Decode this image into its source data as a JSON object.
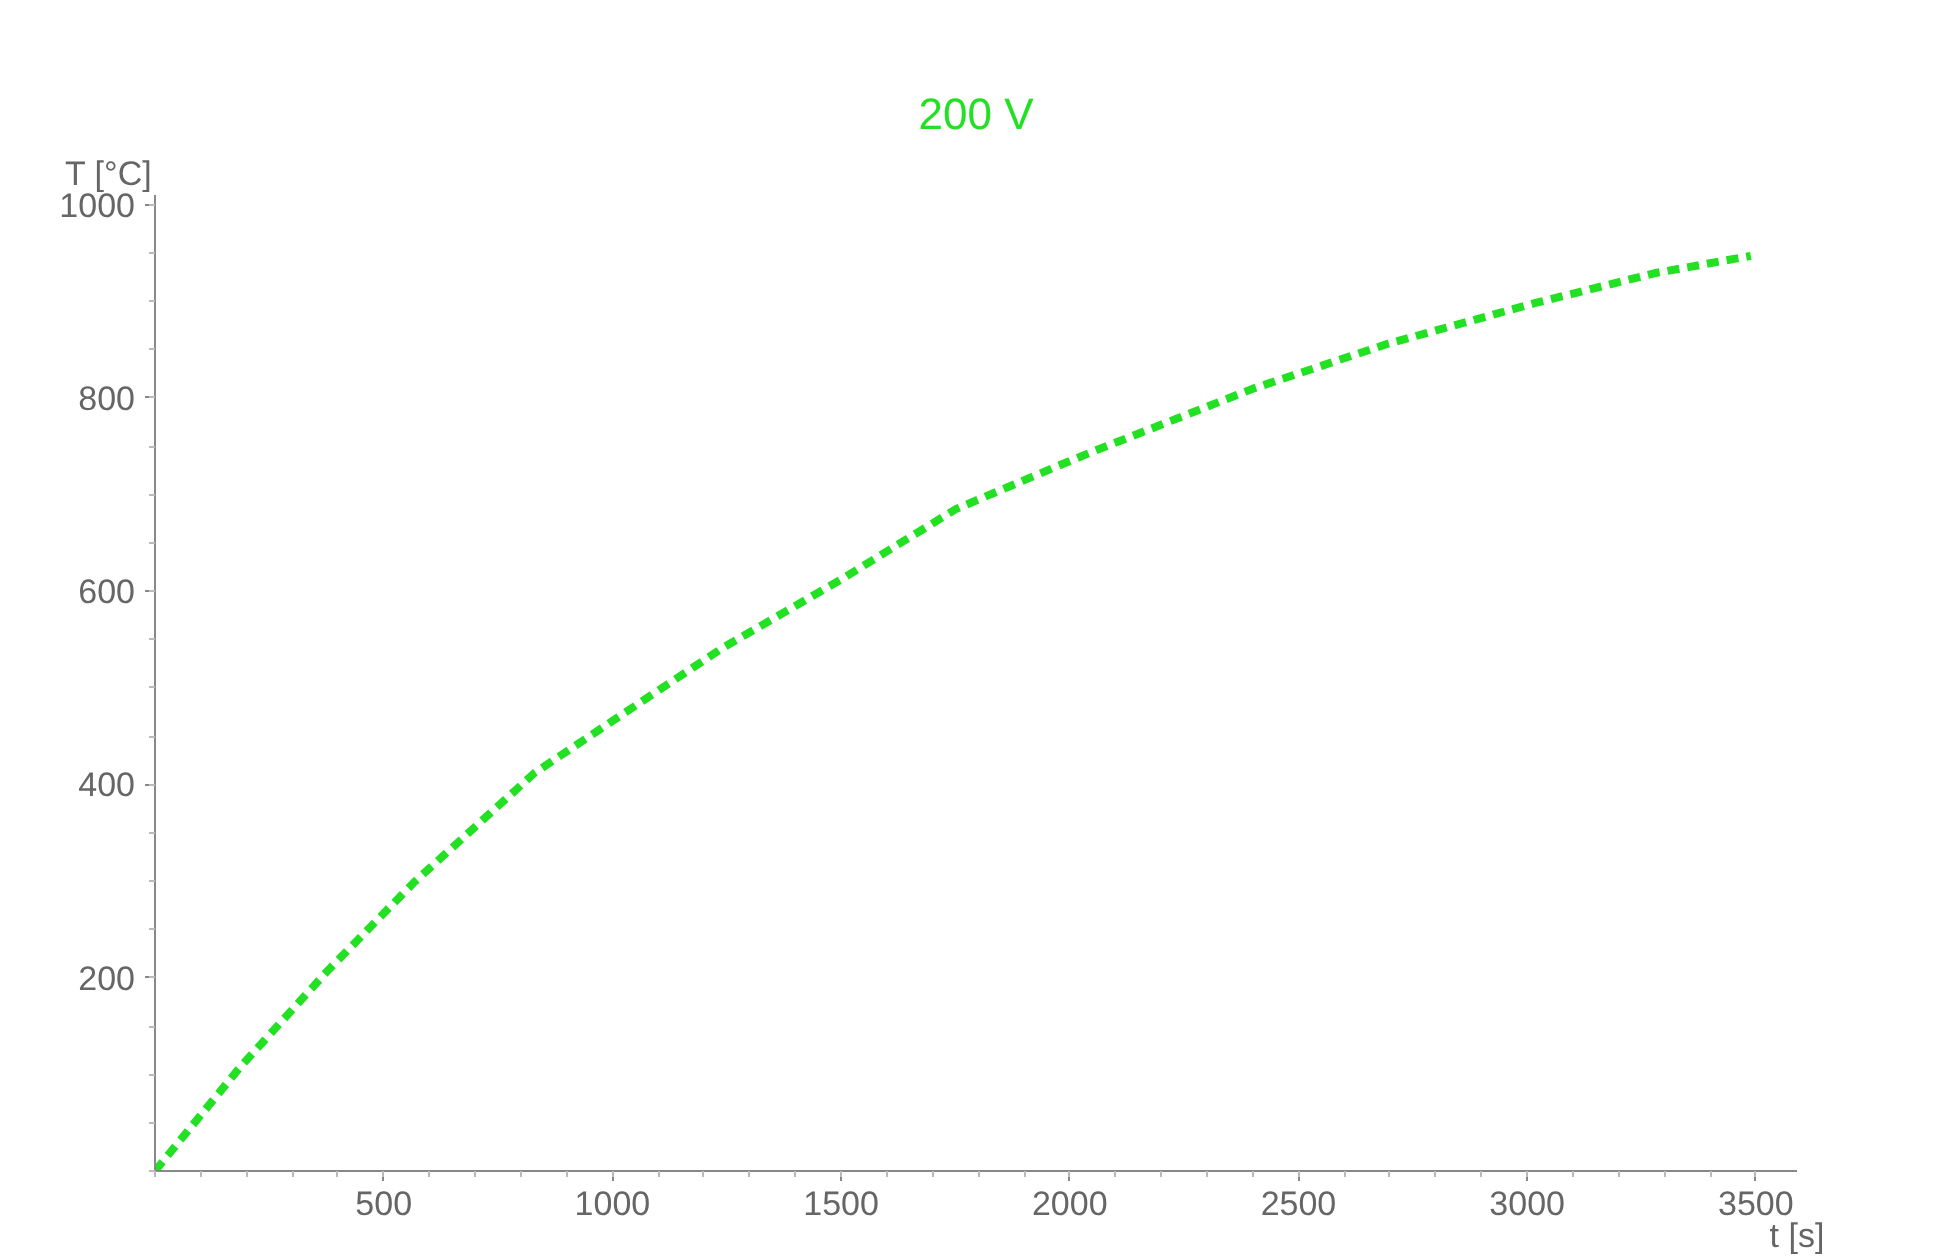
{
  "chart_data": {
    "type": "line",
    "title": "200 V",
    "xlabel": "t [s]",
    "ylabel": "T [°C]",
    "xlim": [
      0,
      3590
    ],
    "ylim": [
      0,
      1010
    ],
    "xticks": [
      500,
      1000,
      1500,
      2000,
      2500,
      3000,
      3500
    ],
    "yticks": [
      200,
      400,
      600,
      800,
      1000
    ],
    "grid": false,
    "marker": "none",
    "line_style": "dashed",
    "series": [
      {
        "color": "#22e022",
        "x": [
          0,
          187,
          377,
          567,
          830,
          1001,
          1240,
          1503,
          1751,
          1971,
          2053,
          2403,
          2695,
          3016,
          3278,
          3489
        ],
        "values": [
          0,
          108,
          207,
          299,
          412,
          466,
          541,
          613,
          685,
          729,
          745,
          810,
          856,
          898,
          929,
          947
        ]
      }
    ]
  }
}
